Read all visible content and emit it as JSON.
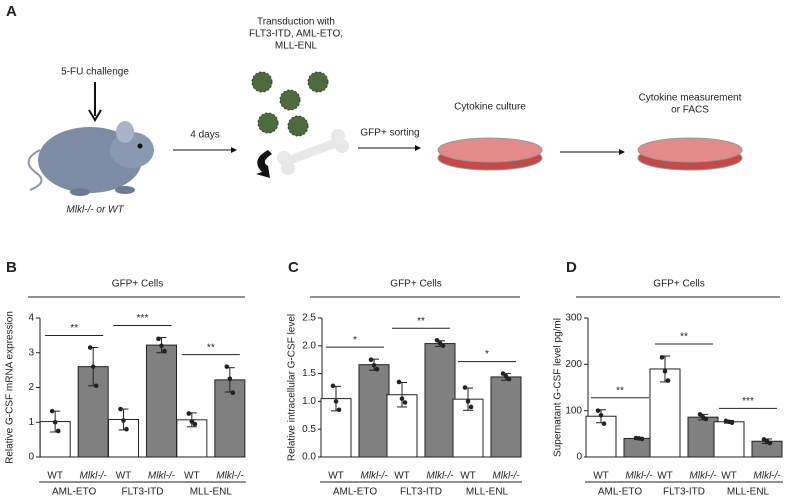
{
  "panel_a": {
    "letter": "A",
    "challenge": "5-FU challenge",
    "mouse_label": "Mlkl-/- or WT",
    "days": "4 days",
    "transduction": [
      "Transduction with",
      "FLT3-ITD, AML-ETO,",
      "MLL-ENL"
    ],
    "sorting": "GFP+ sorting",
    "culture": "Cytokine culture",
    "measurement": [
      "Cytokine measurement",
      "or FACS"
    ]
  },
  "chart_data": [
    {
      "type": "bar",
      "letter": "B",
      "header": "GFP+ Cells",
      "ylabel": "Relative G-CSF mRNA expression",
      "categories": [
        "AML-ETO",
        "FLT3-ITD",
        "MLL-ENL"
      ],
      "ylim": [
        0,
        4
      ],
      "yticks": [
        0,
        1,
        2,
        3,
        4
      ],
      "significance": [
        "**",
        "***",
        "**"
      ],
      "series": [
        {
          "name": "WT",
          "color": "#ffffff",
          "values": [
            1.02,
            1.08,
            1.07
          ],
          "errors": [
            0.3,
            0.3,
            0.2
          ],
          "points": [
            [
              1.32,
              1.0,
              0.75
            ],
            [
              1.38,
              1.05,
              0.8
            ],
            [
              1.25,
              1.02,
              0.95
            ]
          ]
        },
        {
          "name": "Mlkl-/-",
          "color": "#808080",
          "values": [
            2.6,
            3.22,
            2.22
          ],
          "errors": [
            0.55,
            0.22,
            0.35
          ],
          "points": [
            [
              3.15,
              2.6,
              2.05
            ],
            [
              3.4,
              3.2,
              3.05
            ],
            [
              2.6,
              2.25,
              1.85
            ]
          ]
        }
      ]
    },
    {
      "type": "bar",
      "letter": "C",
      "header": "GFP+ Cells",
      "ylabel": "Relative intracellular G-CSF level",
      "categories": [
        "AML-ETO",
        "FLT3-ITD",
        "MLL-ENL"
      ],
      "ylim": [
        0,
        2.5
      ],
      "yticks": [
        {
          "value": 0,
          "label": "0.0"
        },
        0.5,
        {
          "value": 1,
          "label": "1.0"
        },
        1.5,
        {
          "value": 2,
          "label": "2.0"
        },
        2.5
      ],
      "significance": [
        "*",
        "**",
        "*"
      ],
      "series": [
        {
          "name": "WT",
          "color": "#ffffff",
          "values": [
            1.05,
            1.12,
            1.04
          ],
          "errors": [
            0.22,
            0.22,
            0.2
          ],
          "points": [
            [
              1.28,
              1.0,
              0.85
            ],
            [
              1.35,
              1.05,
              0.98
            ],
            [
              1.25,
              1.0,
              0.9
            ]
          ]
        },
        {
          "name": "Mlkl-/-",
          "color": "#808080",
          "values": [
            1.66,
            2.04,
            1.44
          ],
          "errors": [
            0.1,
            0.05,
            0.06
          ],
          "points": [
            [
              1.75,
              1.65,
              1.58
            ],
            [
              2.1,
              2.05,
              2.0
            ],
            [
              1.5,
              1.45,
              1.4
            ]
          ]
        }
      ]
    },
    {
      "type": "bar",
      "letter": "D",
      "header": "GFP+ Cells",
      "ylabel": "Supernatant G-CSF level pg/ml",
      "categories": [
        "AML-ETO",
        "FLT3-ITD",
        "MLL-ENL"
      ],
      "ylim": [
        0,
        300
      ],
      "yticks": [
        0,
        100,
        200,
        300
      ],
      "significance": [
        "**",
        "**",
        "***"
      ],
      "series": [
        {
          "name": "WT",
          "color": "#ffffff",
          "values": [
            88,
            190,
            76
          ],
          "errors": [
            14,
            28,
            3
          ],
          "points": [
            [
              100,
              90,
              72
            ],
            [
              215,
              185,
              165
            ],
            [
              78,
              76,
              74
            ]
          ]
        },
        {
          "name": "Mlkl-/-",
          "color": "#808080",
          "values": [
            40,
            86,
            34
          ],
          "errors": [
            2,
            6,
            5
          ],
          "points": [
            [
              41,
              40,
              39
            ],
            [
              92,
              86,
              82
            ],
            [
              38,
              34,
              30
            ]
          ]
        }
      ]
    }
  ]
}
